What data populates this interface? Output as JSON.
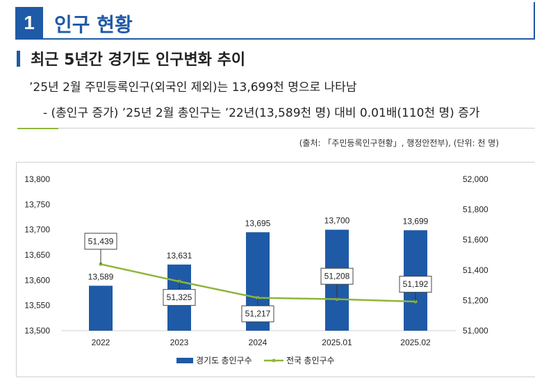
{
  "section": {
    "number": "1",
    "title": "인구 현황"
  },
  "subtitle": "최근 5년간 경기도 인구변화 추이",
  "line1": "’25년 2월 주민등록인구(외국인 제외)는 13,699천 명으로 나타남",
  "line2": "- (총인구 증가) ’25년 2월 총인구는 ’22년(13,589천 명) 대비 0.01배(110천 명) 증가",
  "source": "(출처: 「주민등록인구현황」, 행정안전부), (단위: 천 명)",
  "colors": {
    "accent": "#1f5aa6",
    "bar": "#1f5aa6",
    "line": "#8fb53a"
  },
  "chart_data": {
    "type": "bar",
    "categories": [
      "2022",
      "2023",
      "2024",
      "2025.01",
      "2025.02"
    ],
    "series": [
      {
        "name": "경기도 총인구수",
        "type": "bar",
        "axis": "left",
        "values": [
          13589,
          13631,
          13695,
          13700,
          13699
        ],
        "labels": [
          "13,589",
          "13,631",
          "13,695",
          "13,700",
          "13,699"
        ]
      },
      {
        "name": "전국 총인구수",
        "type": "line",
        "axis": "right",
        "values": [
          51439,
          51325,
          51217,
          51208,
          51192
        ],
        "labels": [
          "51,439",
          "51,325",
          "51,217",
          "51,208",
          "51,192"
        ]
      }
    ],
    "y_left": {
      "min": 13500,
      "max": 13800,
      "ticks": [
        "13,500",
        "13,550",
        "13,600",
        "13,650",
        "13,700",
        "13,750",
        "13,800"
      ]
    },
    "y_right": {
      "min": 51000,
      "max": 52000,
      "ticks": [
        "51,000",
        "51,200",
        "51,400",
        "51,600",
        "51,800",
        "52,000"
      ]
    },
    "grid": false,
    "legend_position": "bottom"
  }
}
